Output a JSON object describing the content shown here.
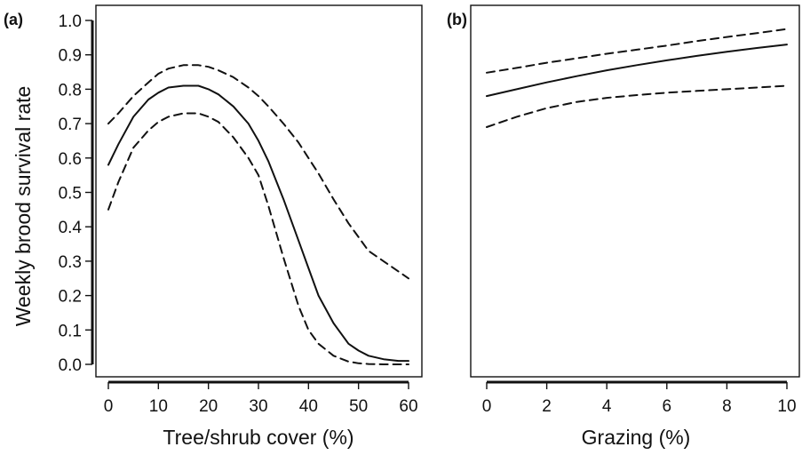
{
  "figure": {
    "ylabel": "Weekly brood survival rate"
  },
  "chart_data": [
    {
      "type": "line",
      "panel_label": "(a)",
      "xlabel": "Tree/shrub cover (%)",
      "ylabel": "Weekly brood survival rate",
      "xlim": [
        0,
        60
      ],
      "ylim": [
        0,
        1
      ],
      "xticks": [
        "0",
        "10",
        "20",
        "30",
        "40",
        "50",
        "60"
      ],
      "yticks": [
        "0.0",
        "0.1",
        "0.2",
        "0.3",
        "0.4",
        "0.5",
        "0.6",
        "0.7",
        "0.8",
        "0.9",
        "1.0"
      ],
      "grid": false,
      "x": [
        0,
        2,
        5,
        8,
        10,
        12,
        15,
        18,
        20,
        22,
        25,
        28,
        30,
        32,
        35,
        38,
        40,
        42,
        45,
        48,
        50,
        52,
        55,
        58,
        60
      ],
      "series": [
        {
          "role": "upper",
          "style": "dashed",
          "values": [
            0.7,
            0.73,
            0.78,
            0.82,
            0.845,
            0.86,
            0.87,
            0.87,
            0.865,
            0.855,
            0.835,
            0.805,
            0.78,
            0.75,
            0.7,
            0.645,
            0.6,
            0.555,
            0.48,
            0.41,
            0.37,
            0.33,
            0.3,
            0.27,
            0.25
          ]
        },
        {
          "role": "fit",
          "style": "solid",
          "values": [
            0.58,
            0.64,
            0.72,
            0.77,
            0.79,
            0.805,
            0.81,
            0.81,
            0.8,
            0.785,
            0.75,
            0.7,
            0.65,
            0.59,
            0.48,
            0.36,
            0.28,
            0.2,
            0.12,
            0.06,
            0.04,
            0.025,
            0.015,
            0.01,
            0.01
          ]
        },
        {
          "role": "lower",
          "style": "dashed",
          "values": [
            0.45,
            0.53,
            0.63,
            0.68,
            0.705,
            0.72,
            0.73,
            0.73,
            0.72,
            0.705,
            0.66,
            0.6,
            0.55,
            0.46,
            0.31,
            0.17,
            0.1,
            0.06,
            0.025,
            0.008,
            0.003,
            0.001,
            0.0,
            0.0,
            0.0
          ]
        }
      ]
    },
    {
      "type": "line",
      "panel_label": "(b)",
      "xlabel": "Grazing (%)",
      "ylabel": "",
      "xlim": [
        0,
        10
      ],
      "ylim": [
        0,
        1
      ],
      "xticks": [
        "0",
        "2",
        "4",
        "6",
        "8",
        "10"
      ],
      "yticks": [],
      "grid": false,
      "x": [
        0,
        1,
        2,
        3,
        4,
        5,
        6,
        7,
        8,
        9,
        10
      ],
      "series": [
        {
          "role": "upper",
          "style": "dashed",
          "values": [
            0.848,
            0.862,
            0.877,
            0.89,
            0.903,
            0.915,
            0.927,
            0.94,
            0.952,
            0.963,
            0.975
          ]
        },
        {
          "role": "fit",
          "style": "solid",
          "values": [
            0.78,
            0.8,
            0.82,
            0.838,
            0.855,
            0.87,
            0.884,
            0.897,
            0.909,
            0.92,
            0.93
          ]
        },
        {
          "role": "lower",
          "style": "dashed",
          "values": [
            0.69,
            0.72,
            0.745,
            0.763,
            0.775,
            0.783,
            0.79,
            0.795,
            0.8,
            0.805,
            0.81
          ]
        }
      ]
    }
  ]
}
